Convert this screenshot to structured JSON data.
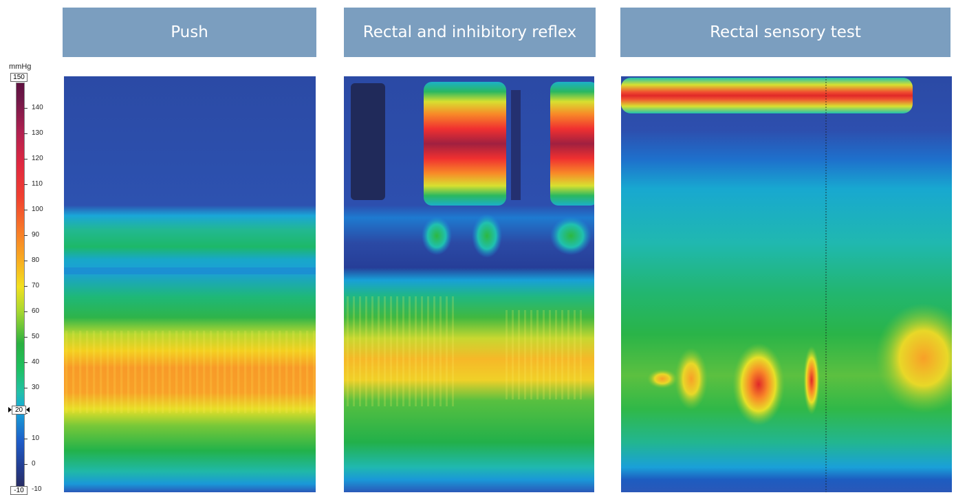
{
  "panels": [
    {
      "title": "Push"
    },
    {
      "title": "Rectal and inhibitory reflex"
    },
    {
      "title": "Rectal sensory test"
    }
  ],
  "color_scale": {
    "unit": "mmHg",
    "max": "150",
    "min": "-10",
    "marker": "20",
    "ticks": [
      "140",
      "130",
      "120",
      "110",
      "100",
      "90",
      "80",
      "70",
      "60",
      "50",
      "40",
      "30",
      "20",
      "10",
      "0",
      "-10"
    ]
  },
  "chart_data": {
    "type": "heatmap",
    "colorbar": {
      "label": "mmHg",
      "range": [
        -10,
        150
      ]
    },
    "panels": [
      {
        "title": "Push"
      },
      {
        "title": "Rectal and inhibitory reflex"
      },
      {
        "title": "Rectal sensory test"
      }
    ]
  }
}
